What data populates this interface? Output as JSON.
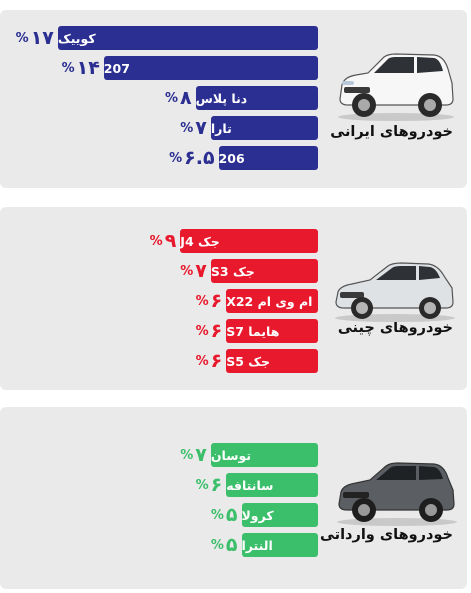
{
  "chart_data": {
    "type": "bar",
    "orientation": "horizontal",
    "groups": [
      {
        "title": "خودروهای ایرانی",
        "color": "#2b2f91",
        "car_icon": "white-suv-icon",
        "categories": [
          "کوییک",
          "207",
          "دنا پلاس",
          "تارا",
          "206"
        ],
        "values": [
          17,
          14,
          8,
          7,
          6.5
        ],
        "value_labels": [
          "۱۷",
          "۱۴",
          "۸",
          "۷",
          "۶.۵"
        ]
      },
      {
        "title": "خودروهای چینی",
        "color": "#e8192c",
        "car_icon": "silver-sedan-icon",
        "categories": [
          "جک J4",
          "جک S3",
          "ام وی ام X22",
          "هایما S7",
          "جک S5"
        ],
        "values": [
          9,
          7,
          6,
          6,
          6
        ],
        "value_labels": [
          "۹",
          "۷",
          "۶",
          "۶",
          "۶"
        ]
      },
      {
        "title": "خودروهای وارداتی",
        "color": "#3bbf6a",
        "car_icon": "dark-suv-icon",
        "categories": [
          "توسان",
          "سانتافه",
          "کرولا",
          "النترا"
        ],
        "values": [
          7,
          6,
          5,
          5
        ],
        "value_labels": [
          "۷",
          "۶",
          "۵",
          "۵"
        ]
      }
    ],
    "value_suffix": "%"
  }
}
